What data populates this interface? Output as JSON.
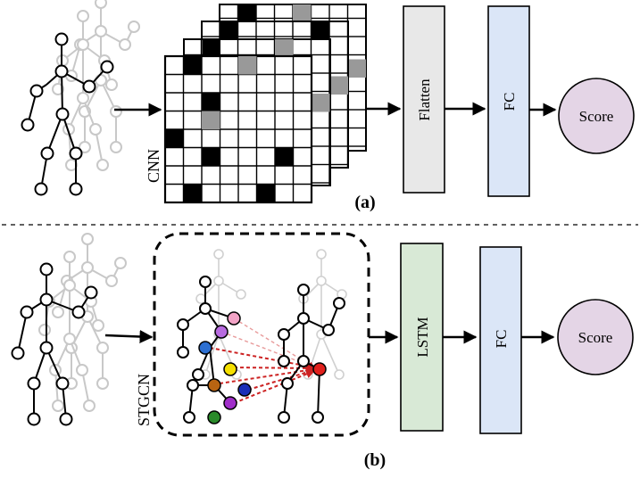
{
  "panel_a": {
    "cnn_label": "CNN",
    "flatten_label": "Flatten",
    "fc_label": "FC",
    "score_label": "Score",
    "caption": "(a)"
  },
  "panel_b": {
    "stgcn_label": "STGCN",
    "lstm_label": "LSTM",
    "fc_label": "FC",
    "score_label": "Score",
    "caption": "(b)"
  },
  "colors": {
    "flatten_fill": "#e8e8e8",
    "fc_fill": "#dbe6f7",
    "lstm_fill": "#d8e9d6",
    "score_fill": "#e4d5e6",
    "skeleton_faded": "#c8c8c8",
    "attention_arrow": "#cc2222",
    "joint_colors": [
      "#b86be0",
      "#f2a3c6",
      "#2c6fd1",
      "#f5e000",
      "#b86412",
      "#1a2fb8",
      "#a02ec9",
      "#2a8a2a",
      "#e0201c"
    ]
  }
}
